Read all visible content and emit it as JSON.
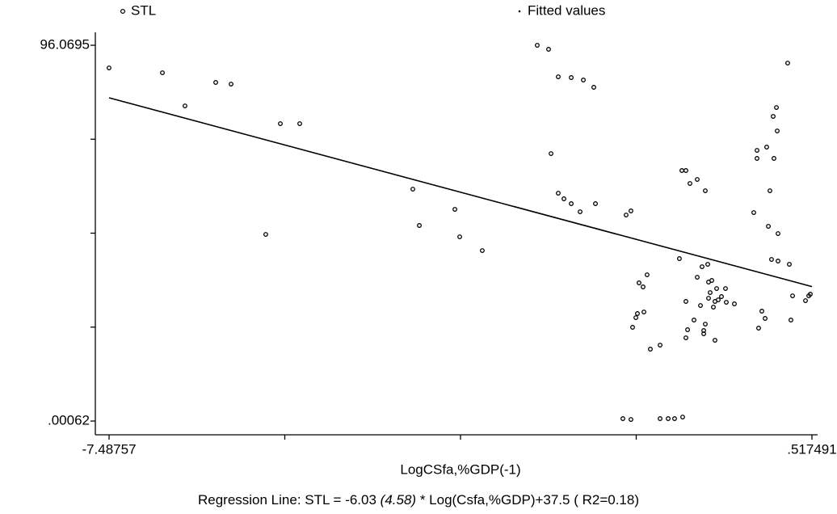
{
  "chart_data": {
    "type": "scatter",
    "xlabel": "LogCSfa,%GDP(-1)",
    "note": [
      "Regression Line: STL = -6.03 ",
      "(4.58)",
      " * Log(Csfa,%GDP)+37.5 ( R2=0.18)"
    ],
    "xlim": [
      -7.644,
      0.582
    ],
    "ylim": [
      -3.51,
      99.38
    ],
    "xticks": [
      -7.48757,
      {
        "value": -5.4863,
        "label": null
      },
      {
        "value": -3.48504,
        "label": null
      },
      {
        "value": -1.48377,
        "label": null
      },
      {
        "value": 0.517491,
        "label": ".517491"
      }
    ],
    "yticks": [
      {
        "value": 0.00062,
        "label": ".00062"
      },
      {
        "value": 24.0178,
        "label": null
      },
      {
        "value": 48.035,
        "label": null
      },
      {
        "value": 72.0523,
        "label": null
      },
      96.0695
    ],
    "series": [
      {
        "name": "STL",
        "color": "#000000",
        "mode": "markers",
        "x": [
          -7.488,
          -6.88,
          -6.623,
          -6.273,
          -6.098,
          -5.703,
          -5.537,
          -5.316,
          -4.028,
          -3.954,
          -3.549,
          -3.494,
          -3.237,
          -2.611,
          -2.482,
          -2.454,
          -2.372,
          -2.372,
          -2.307,
          -2.224,
          -2.224,
          -2.123,
          -2.086,
          -1.967,
          -1.948,
          -1.599,
          -1.544,
          -1.636,
          -1.544,
          -1.525,
          -1.488,
          -1.47,
          -1.452,
          -1.406,
          -1.396,
          -1.36,
          -1.323,
          -1.212,
          -1.212,
          -1.12,
          -1.047,
          -0.955,
          -0.964,
          -0.918,
          -0.992,
          -0.918,
          -0.918,
          -0.899,
          -0.872,
          -0.826,
          -0.789,
          -0.789,
          -0.752,
          -0.734,
          -0.715,
          -0.715,
          -0.697,
          -0.697,
          -0.669,
          -0.66,
          -0.66,
          -0.642,
          -0.623,
          -0.605,
          -0.587,
          -0.587,
          -0.568,
          -0.55,
          -0.513,
          -0.467,
          -0.458,
          -0.366,
          -0.145,
          -0.108,
          -0.09,
          -0.108,
          -0.053,
          -0.016,
          0.002,
          0.021,
          0.039,
          0.057,
          0.076,
          0.085,
          0.113,
          0.122,
          0.131,
          0.131,
          0.241,
          0.26,
          0.278,
          0.297,
          0.444,
          0.481,
          0.499
        ],
        "values": [
          90.28,
          89.04,
          80.57,
          86.57,
          86.15,
          47.72,
          76.03,
          76.03,
          59.29,
          50.0,
          54.13,
          47.1,
          43.59,
          96.07,
          95.04,
          68.38,
          88.01,
          58.26,
          56.82,
          87.81,
          55.58,
          53.51,
          87.19,
          85.33,
          55.58,
          52.68,
          53.72,
          0.62,
          0.41,
          23.97,
          26.44,
          27.48,
          35.33,
          34.3,
          27.89,
          37.39,
          18.39,
          19.42,
          0.62,
          0.62,
          0.62,
          1.03,
          64.05,
          64.05,
          41.53,
          30.58,
          21.28,
          23.35,
          60.74,
          25.83,
          61.77,
          36.77,
          29.54,
          39.46,
          23.14,
          22.31,
          58.88,
          24.79,
          40.08,
          35.54,
          31.4,
          32.85,
          35.95,
          29.13,
          20.66,
          30.58,
          33.88,
          30.99,
          31.82,
          33.88,
          30.37,
          29.96,
          53.3,
          69.21,
          23.76,
          67.15,
          28.1,
          26.24,
          70.04,
          49.79,
          58.88,
          41.32,
          77.89,
          67.15,
          80.16,
          74.17,
          47.93,
          40.91,
          91.52,
          40.08,
          25.83,
          32.02,
          30.78,
          32.02,
          32.44
        ]
      },
      {
        "name": "Fitted values",
        "color": "#000000",
        "mode": "line",
        "x": [
          -7.48757,
          0.517491
        ],
        "values": [
          82.65,
          34.38
        ]
      }
    ]
  }
}
